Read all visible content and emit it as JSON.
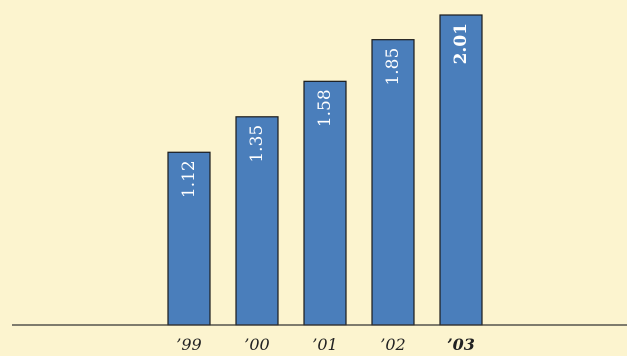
{
  "colors": {
    "background": "#fcf4cf",
    "bar": "#4a7ebb",
    "axis": "#333333"
  },
  "chart_data": {
    "type": "bar",
    "title": "",
    "xlabel": "",
    "ylabel": "",
    "categories": [
      "’99",
      "’00",
      "’01",
      "’02",
      "’03"
    ],
    "values": [
      1.12,
      1.35,
      1.58,
      1.85,
      2.01
    ],
    "value_labels": [
      "1.12",
      "1.35",
      "1.58",
      "1.85",
      "2.01"
    ],
    "emphasized_category": "’03",
    "ylim": [
      0,
      2.01
    ],
    "grid": false,
    "legend": "none",
    "value_label_orientation": "vertical"
  }
}
